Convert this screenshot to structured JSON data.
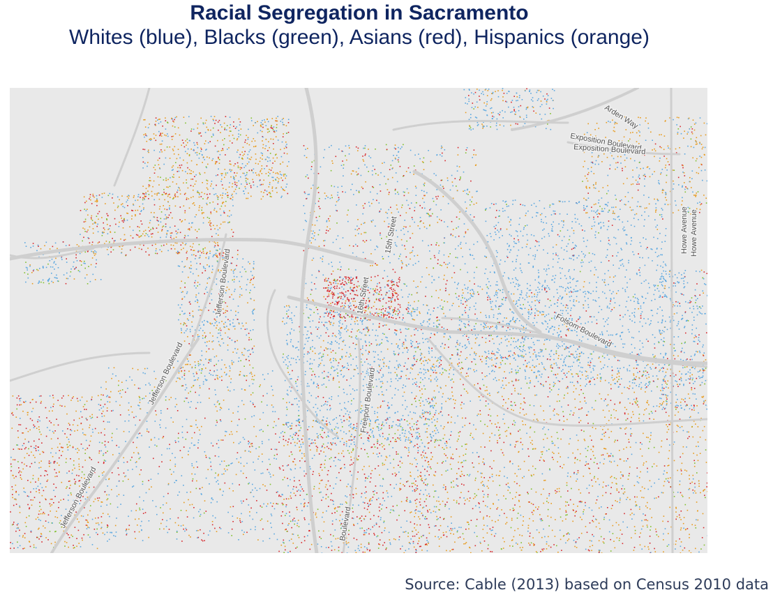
{
  "title": "Racial Segregation in Sacramento",
  "subtitle": "Whites (blue), Blacks (green), Asians (red), Hispanics (orange)",
  "source": "Source: Cable (2013) based on Census 2010 data",
  "colors": {
    "white": "#5aa7e0",
    "black": "#7fbf2a",
    "asian": "#d7262b",
    "hispanic": "#e89a1c",
    "background": "#e9e9e9",
    "road": "#cfcfcf"
  },
  "street_labels": {
    "arden_way": "Arden Way",
    "exposition_1": "Exposition Boulevard",
    "exposition_2": "Exposition Boulevard",
    "jefferson_upper": "Jefferson Boulevard",
    "jefferson_mid": "Jefferson Boulevard",
    "jefferson_lower": "Jefferson Boulevard",
    "fifteenth_street": "15th Street",
    "sixteenth_street": "16th Street",
    "folsom": "Folsom Boulevard",
    "freeport": "Freeport Boulevard",
    "howe_avenue_1": "Howe Avenue",
    "howe_avenue_2": "Howe Avenue",
    "lower_boulevard": "Boulevard"
  }
}
